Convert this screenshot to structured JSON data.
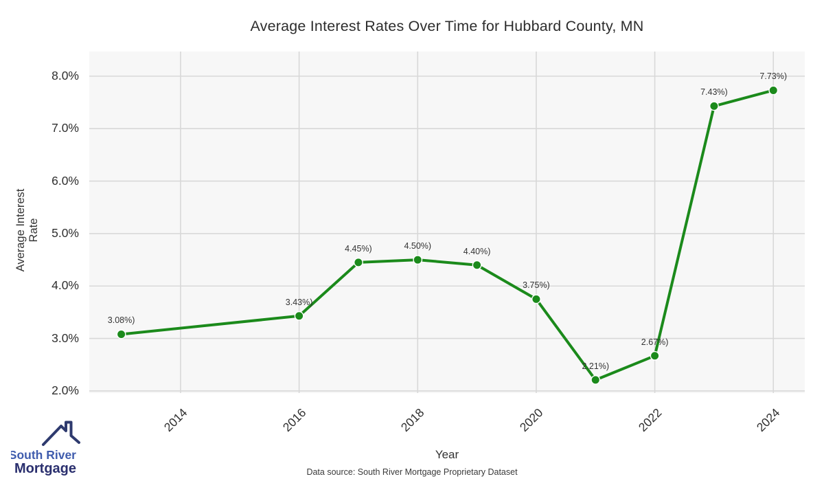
{
  "header": {
    "title": "Average Interest Rates Over Time for Hubbard County, MN"
  },
  "footer": {
    "data_source": "Data source: South River Mortgage Proprietary Dataset"
  },
  "logo": {
    "line1": "South River",
    "line2": "Mortgage",
    "text_color_primary": "#3f5cad",
    "text_color_secondary": "#2a2f6e",
    "roof_color": "#2e3a6e"
  },
  "chart_data": {
    "type": "line",
    "title": "Average Interest Rates Over Time for Hubbard County, MN",
    "xlabel": "Year",
    "ylabel": "Average Interest Rate",
    "x": [
      2013,
      2016,
      2017,
      2018,
      2019,
      2020,
      2021,
      2022,
      2023,
      2024
    ],
    "values": [
      3.08,
      3.43,
      4.45,
      4.5,
      4.4,
      3.75,
      2.21,
      2.67,
      7.43,
      7.73
    ],
    "point_labels": [
      "3.08%)",
      "3.43%)",
      "4.45%)",
      "4.50%)",
      "4.40%)",
      "3.75%)",
      "2.21%)",
      "2.67%)",
      "7.43%)",
      "7.73%)"
    ],
    "x_ticks": [
      2014,
      2016,
      2018,
      2020,
      2022,
      2024
    ],
    "x_tick_labels": [
      "2014",
      "2016",
      "2018",
      "2020",
      "2022",
      "2024"
    ],
    "y_ticks": [
      2,
      3,
      4,
      5,
      6,
      7,
      8
    ],
    "y_tick_labels": [
      "2.0%",
      "3.0%",
      "4.0%",
      "5.0%",
      "6.0%",
      "7.0%",
      "8.0%"
    ],
    "xlim": [
      2012.46,
      2024.53
    ],
    "ylim": [
      1.96,
      8.47
    ],
    "grid": true,
    "legend": "none",
    "line_color": "#1b8a1b",
    "marker_color": "#1b8a1b",
    "marker_edge_color": "#ffffff",
    "plot_bg": "#f7f7f7",
    "grid_color": "#d8d8d8"
  }
}
